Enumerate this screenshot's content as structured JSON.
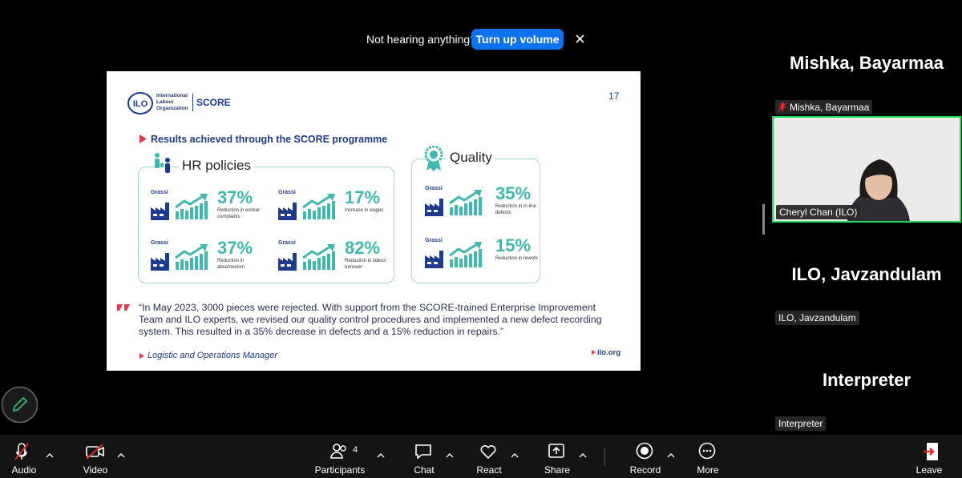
{
  "banner": {
    "message": "Not hearing anything?",
    "button": "Turn up volume"
  },
  "slide": {
    "org": "International Labour Organization",
    "programme": "SCORE",
    "page": "17",
    "heading": "Results achieved through the SCORE programme",
    "sections": [
      {
        "title": "HR policies",
        "items": [
          {
            "company": "Grassi",
            "figure": "37%",
            "caption": "Reduction in worker complaints"
          },
          {
            "company": "Grassi",
            "figure": "17%",
            "caption": "Increase in wages"
          },
          {
            "company": "Grassi",
            "figure": "37%",
            "caption": "Reduction in absenteeism"
          },
          {
            "company": "Grassi",
            "figure": "82%",
            "caption": "Reduction in labour turnover"
          }
        ]
      },
      {
        "title": "Quality",
        "items": [
          {
            "company": "Grassi",
            "figure": "35%",
            "caption": "Reduction in in-line defects"
          },
          {
            "company": "Grassi",
            "figure": "15%",
            "caption": "Reduction in rework"
          }
        ]
      }
    ],
    "quote": "“In May 2023, 3000 pieces were rejected. With support from the SCORE-trained Enterprise Improvement Team and ILO experts, we revised our quality control procedures and implemented a new defect recording system. This resulted in a 35% decrease in defects and a 15% reduction in repairs.”",
    "attribution": "Logistic and Operations Manager",
    "website": "ilo.org"
  },
  "participants": [
    {
      "name": "Mishka, Bayarmaa",
      "label": "Mishka, Bayarmaa"
    },
    {
      "label": "Cheryl Chan (ILO)"
    },
    {
      "name": "ILO, Javzandulam",
      "label": "ILO, Javzandulam"
    },
    {
      "name": "Interpreter",
      "label": "Interpreter"
    }
  ],
  "toolbar": {
    "participant_count": 4,
    "buttons": [
      "Audio",
      "Video",
      "Participants",
      "Chat",
      "React",
      "Share",
      "Record",
      "More"
    ],
    "leave": "Leave"
  }
}
